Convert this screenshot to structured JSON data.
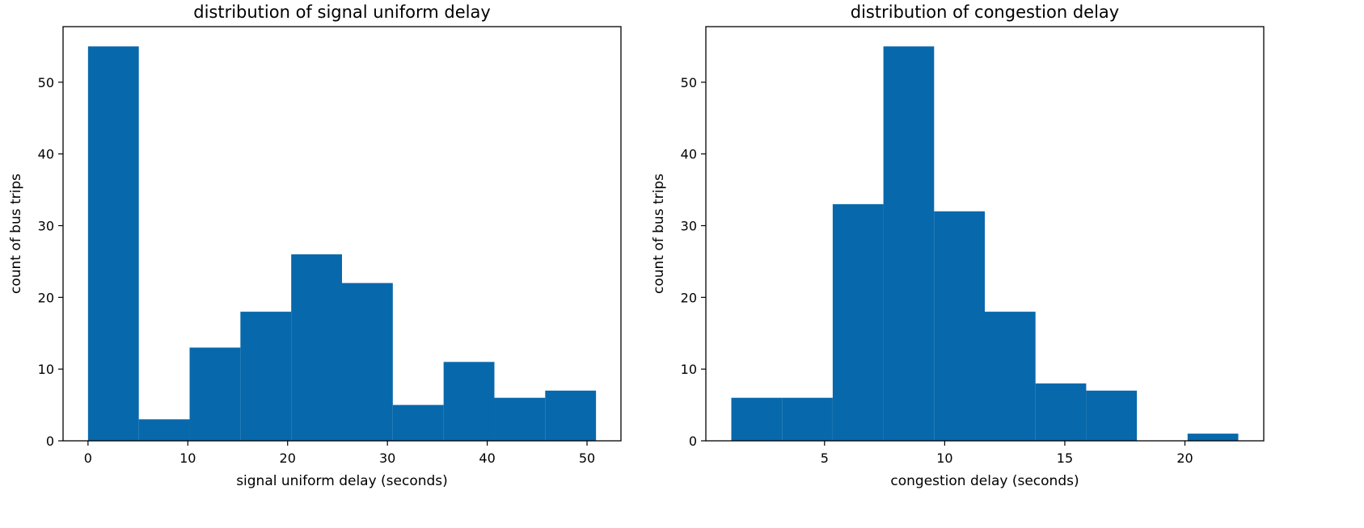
{
  "chart_data": [
    {
      "type": "bar",
      "title": "distribution of signal uniform delay",
      "xlabel": "signal uniform delay (seconds)",
      "ylabel": "count of bus trips",
      "bin_edges": [
        0,
        5.09,
        10.18,
        15.27,
        20.36,
        25.45,
        30.54,
        35.63,
        40.72,
        45.81,
        50.9
      ],
      "values": [
        55,
        3,
        13,
        18,
        26,
        22,
        5,
        11,
        6,
        7
      ],
      "xlim": [
        -2.5,
        53.4
      ],
      "ylim": [
        0,
        57.75
      ],
      "xticks": [
        0,
        10,
        20,
        30,
        40,
        50
      ],
      "yticks": [
        0,
        10,
        20,
        30,
        40,
        50
      ],
      "bar_color": "#0868ac",
      "grid": false,
      "legend": "none"
    },
    {
      "type": "bar",
      "title": "distribution of congestion delay",
      "xlabel": "congestion delay (seconds)",
      "ylabel": "count of bus trips",
      "bin_edges": [
        1.12,
        3.23,
        5.34,
        7.45,
        9.56,
        11.67,
        13.78,
        15.89,
        18.0,
        20.11,
        22.22
      ],
      "values": [
        6,
        6,
        33,
        55,
        32,
        18,
        8,
        7,
        0,
        1
      ],
      "xlim": [
        0.06,
        23.28
      ],
      "ylim": [
        0,
        57.75
      ],
      "xticks": [
        5,
        10,
        15,
        20
      ],
      "yticks": [
        0,
        10,
        20,
        30,
        40,
        50
      ],
      "bar_color": "#0868ac",
      "grid": false,
      "legend": "none"
    }
  ]
}
